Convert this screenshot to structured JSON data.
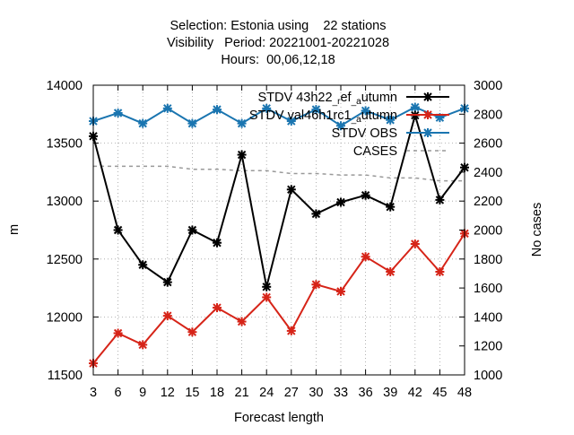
{
  "title_lines": [
    "Selection: Estonia using    22 stations",
    "Visibility   Period: 20221001-20221028",
    "Hours:  00,06,12,18"
  ],
  "chart_data": {
    "type": "line",
    "xlabel": "Forecast length",
    "ylabel": "m",
    "y2label": "No cases",
    "x": [
      3,
      6,
      9,
      12,
      15,
      18,
      21,
      24,
      27,
      30,
      33,
      36,
      39,
      42,
      45,
      48
    ],
    "xticks": [
      3,
      6,
      9,
      12,
      15,
      18,
      21,
      24,
      27,
      30,
      33,
      36,
      39,
      42,
      45,
      48
    ],
    "ylim": [
      11500,
      14000
    ],
    "yticks": [
      11500,
      12000,
      12500,
      13000,
      13500,
      14000
    ],
    "y2lim": [
      1000,
      3000
    ],
    "y2ticks": [
      1000,
      1200,
      1400,
      1600,
      1800,
      2000,
      2200,
      2400,
      2600,
      2800,
      3000
    ],
    "grid": true,
    "legend_position": "top-right",
    "series": [
      {
        "name": "STDV 43h22_ref_autumn",
        "legend_main": "STDV 43h22",
        "legend_parts": [
          [
            "_r",
            "sub"
          ],
          [
            "ef",
            "base"
          ],
          [
            "_a",
            "sub"
          ],
          [
            "utumn",
            "base"
          ]
        ],
        "color": "#000000",
        "axis": "y1",
        "style": "line-marker",
        "values": [
          13560,
          12750,
          12450,
          12300,
          12750,
          12640,
          13400,
          12260,
          13100,
          12890,
          12990,
          13050,
          12950,
          13740,
          13010,
          13290
        ]
      },
      {
        "name": "STDV val46h1rc1_autumn",
        "legend_main": "STDV val46h1rc1",
        "legend_parts": [
          [
            "_a",
            "sub"
          ],
          [
            "utumn",
            "base"
          ]
        ],
        "color": "#d62418",
        "axis": "y1",
        "style": "line-marker",
        "values": [
          11600,
          11860,
          11760,
          12010,
          11870,
          12080,
          11960,
          12170,
          11880,
          12280,
          12220,
          12520,
          12390,
          12630,
          12390,
          12720
        ]
      },
      {
        "name": "STDV OBS",
        "legend_main": "STDV OBS",
        "legend_parts": [],
        "color": "#1a75b0",
        "axis": "y1",
        "style": "line-marker",
        "values": [
          13690,
          13760,
          13670,
          13800,
          13670,
          13790,
          13670,
          13800,
          13690,
          13790,
          13650,
          13780,
          13700,
          13810,
          13720,
          13800
        ]
      },
      {
        "name": "CASES",
        "legend_main": "CASES",
        "legend_parts": [],
        "color": "#999999",
        "axis": "y2",
        "style": "dashed",
        "values": [
          2440,
          2440,
          2440,
          2440,
          2420,
          2420,
          2410,
          2410,
          2390,
          2390,
          2380,
          2380,
          2360,
          2360,
          2340,
          2340
        ]
      }
    ]
  }
}
